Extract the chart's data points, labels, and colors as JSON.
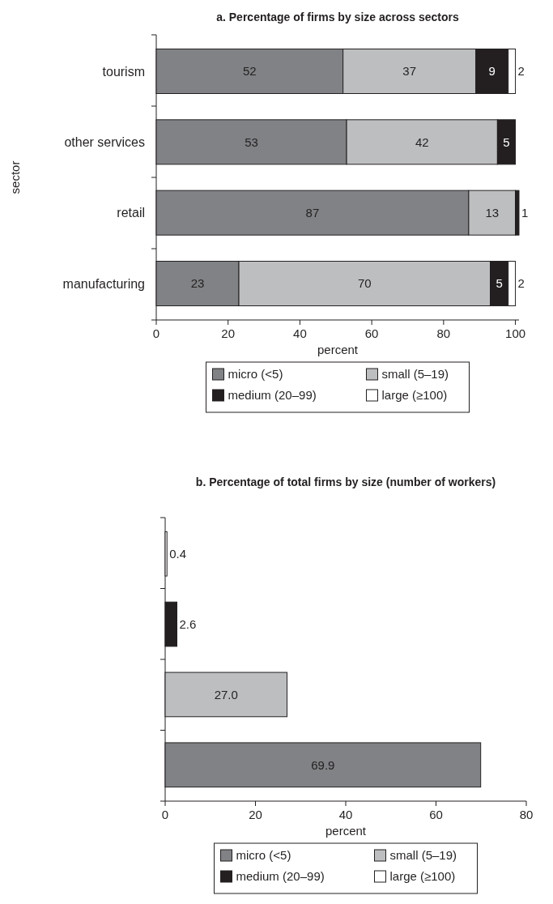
{
  "chart_data": [
    {
      "type": "bar",
      "orientation": "horizontal",
      "stacked": true,
      "title": "a. Percentage of firms by size across sectors",
      "xlabel": "percent",
      "ylabel": "sector",
      "categories": [
        "tourism",
        "other services",
        "retail",
        "manufacturing"
      ],
      "xlim": [
        0,
        101
      ],
      "xticks": [
        0,
        20,
        40,
        60,
        80,
        100
      ],
      "legend": "bottom",
      "series": [
        {
          "name": "micro (<5)",
          "color": "#808285",
          "values": [
            52,
            53,
            87,
            23
          ],
          "value_labels": [
            "52",
            "53",
            "87",
            "23"
          ]
        },
        {
          "name": "small (5–19)",
          "color": "#bcbec0",
          "values": [
            37,
            42,
            13,
            70
          ],
          "value_labels": [
            "37",
            "42",
            "13",
            "70"
          ]
        },
        {
          "name": "medium (20–99)",
          "color": "#231f20",
          "values": [
            9,
            5,
            1,
            5
          ],
          "value_labels": [
            "9",
            "5",
            "1",
            "5"
          ]
        },
        {
          "name": "large (≥100)",
          "color": "#ffffff",
          "values": [
            2,
            null,
            null,
            2
          ],
          "value_labels": [
            "2",
            null,
            null,
            "2"
          ]
        }
      ]
    },
    {
      "type": "bar",
      "orientation": "horizontal",
      "stacked": true,
      "title": "b. Percentage of total firms by size (number of workers)",
      "xlabel": "percent",
      "categories": [
        null,
        null,
        null,
        null
      ],
      "xlim": [
        0,
        80
      ],
      "xticks": [
        0,
        20,
        40,
        60,
        80
      ],
      "legend": "bottom",
      "series": [
        {
          "name": "micro (<5)",
          "color": "#808285",
          "values": [
            null,
            null,
            null,
            69.9
          ],
          "value_labels": [
            null,
            null,
            null,
            "69.9"
          ]
        },
        {
          "name": "small (5–19)",
          "color": "#bcbec0",
          "values": [
            null,
            null,
            27.0,
            null
          ],
          "value_labels": [
            null,
            null,
            "27.0",
            null
          ]
        },
        {
          "name": "medium (20–99)",
          "color": "#231f20",
          "values": [
            null,
            2.6,
            null,
            null
          ],
          "value_labels": [
            null,
            "2.6",
            null,
            null
          ]
        },
        {
          "name": "large (≥100)",
          "color": "#ffffff",
          "values": [
            0.4,
            null,
            null,
            null
          ],
          "value_labels": [
            "0.4",
            null,
            null,
            null
          ]
        }
      ]
    }
  ]
}
